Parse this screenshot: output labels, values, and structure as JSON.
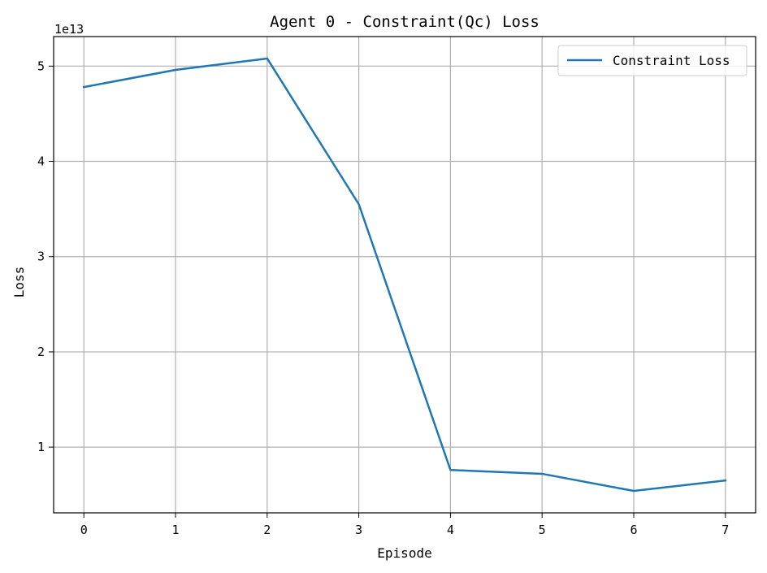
{
  "chart_data": {
    "type": "line",
    "title": "Agent 0 - Constraint(Qc) Loss",
    "xlabel": "Episode",
    "ylabel": "Loss",
    "offset_text": "1e13",
    "scale": 10000000000000.0,
    "x": [
      0,
      1,
      2,
      3,
      4,
      5,
      6,
      7
    ],
    "series": [
      {
        "name": "Constraint Loss",
        "color": "#1f77b4",
        "values": [
          47800000000000,
          49600000000000,
          50800000000000,
          35500000000000,
          7600000000000,
          7200000000000,
          5400000000000,
          6500000000000
        ]
      }
    ],
    "xlim": [
      -0.33,
      7.33
    ],
    "ylim": [
      3100000000000,
      53100000000000
    ],
    "xticks": [
      0,
      1,
      2,
      3,
      4,
      5,
      6,
      7
    ],
    "xtick_labels": [
      "0",
      "1",
      "2",
      "3",
      "4",
      "5",
      "6",
      "7"
    ],
    "yticks": [
      10000000000000,
      20000000000000,
      30000000000000,
      40000000000000,
      50000000000000
    ],
    "ytick_labels": [
      "1",
      "2",
      "3",
      "4",
      "5"
    ],
    "grid": true,
    "legend_position": "top-right"
  }
}
